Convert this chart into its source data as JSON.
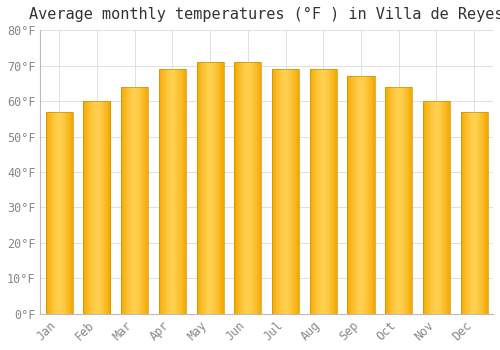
{
  "title": "Average monthly temperatures (°F ) in Villa de Reyes",
  "months": [
    "Jan",
    "Feb",
    "Mar",
    "Apr",
    "May",
    "Jun",
    "Jul",
    "Aug",
    "Sep",
    "Oct",
    "Nov",
    "Dec"
  ],
  "values": [
    57,
    60,
    64,
    69,
    71,
    71,
    69,
    69,
    67,
    64,
    60,
    57
  ],
  "bar_color_dark": "#F5A800",
  "bar_color_mid": "#FFBE00",
  "bar_color_light": "#FFD050",
  "ylim": [
    0,
    80
  ],
  "yticks": [
    0,
    10,
    20,
    30,
    40,
    50,
    60,
    70,
    80
  ],
  "ylabel_format": "°F",
  "background_color": "#FFFFFF",
  "grid_color": "#E0E0E0",
  "title_fontsize": 11,
  "tick_fontsize": 8.5,
  "tick_color": "#888888",
  "bar_width": 0.72
}
